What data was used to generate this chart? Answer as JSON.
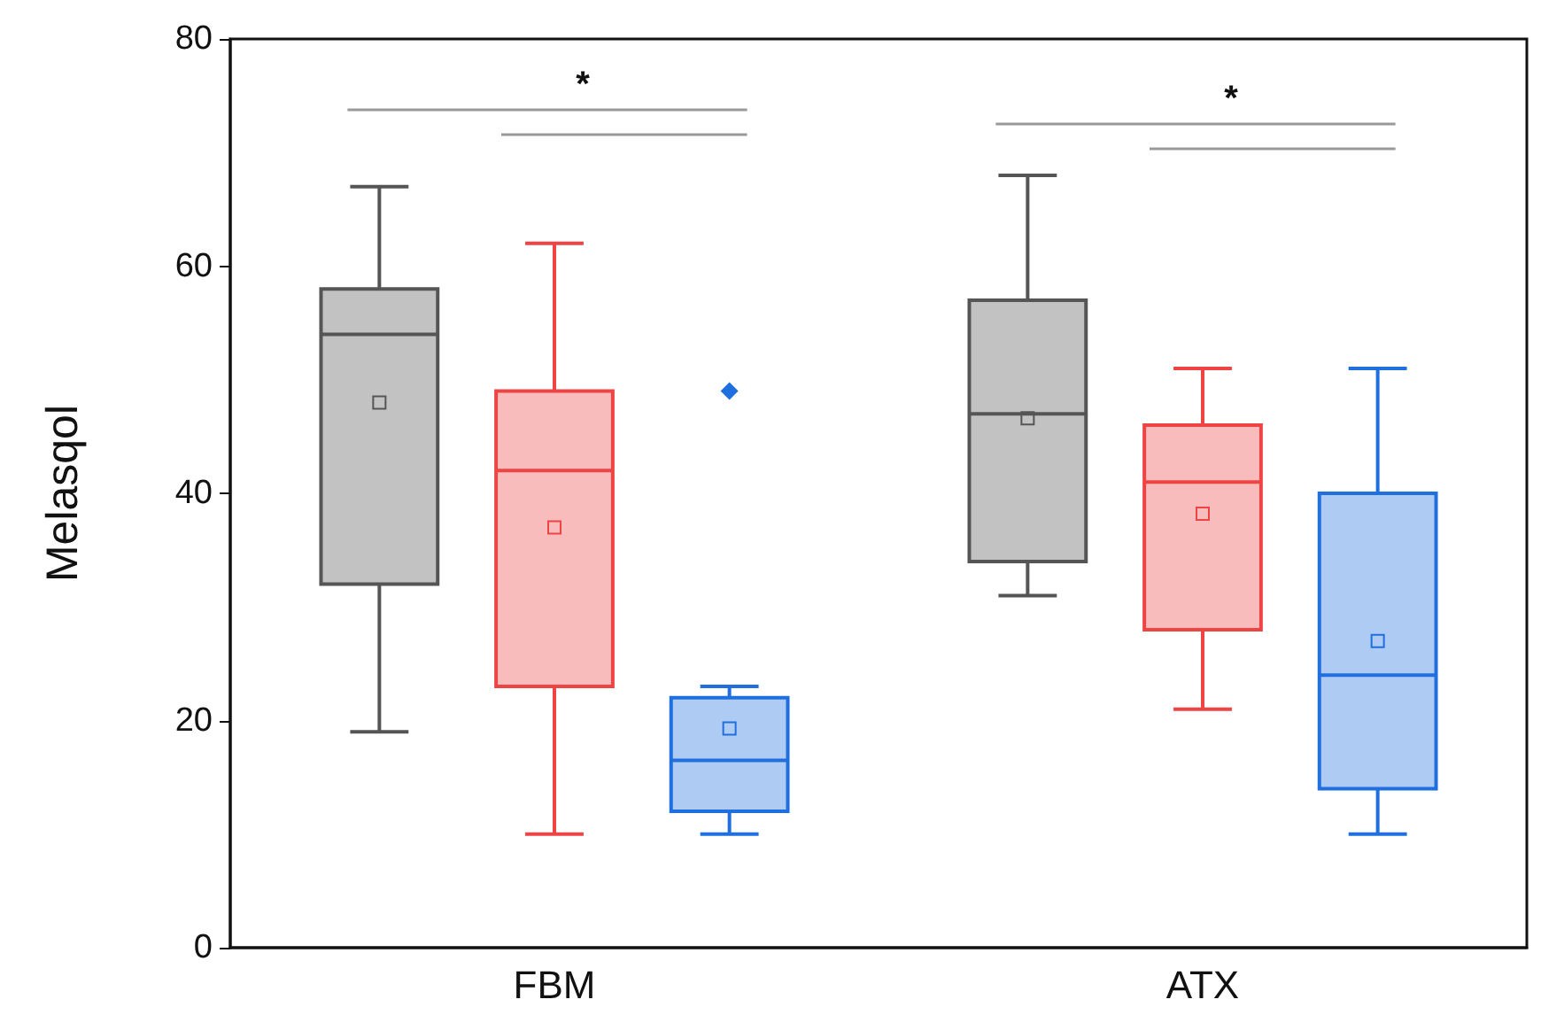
{
  "chart_data": {
    "type": "box",
    "ylabel": "Melasqol",
    "categories": [
      "FBM",
      "ATX"
    ],
    "ylim": [
      0,
      80
    ],
    "yticks": [
      0,
      20,
      40,
      60,
      80
    ],
    "grid": false,
    "annotations": [
      "*",
      "*"
    ],
    "series": [
      {
        "color": "#555555",
        "boxes": [
          {
            "low": 19,
            "q1": 32,
            "median": 54,
            "q3": 58,
            "high": 67,
            "mean": 48
          },
          {
            "low": 31,
            "q1": 34,
            "median": 47,
            "q3": 57,
            "high": 68,
            "mean": 46.6
          }
        ]
      },
      {
        "color": "#ee4444",
        "boxes": [
          {
            "low": 10,
            "q1": 23,
            "median": 42,
            "q3": 49,
            "high": 62,
            "mean": 37
          },
          {
            "low": 21,
            "q1": 28,
            "median": 41,
            "q3": 46,
            "high": 51,
            "mean": 38.2
          }
        ]
      },
      {
        "color": "#1f6fde",
        "boxes": [
          {
            "low": 10,
            "q1": 12,
            "median": 16.5,
            "q3": 22,
            "high": 23,
            "mean": 19.3,
            "outliers": [
              49
            ]
          },
          {
            "low": 10,
            "q1": 14,
            "median": 24,
            "q3": 40,
            "high": 51,
            "mean": 27
          }
        ]
      }
    ]
  }
}
